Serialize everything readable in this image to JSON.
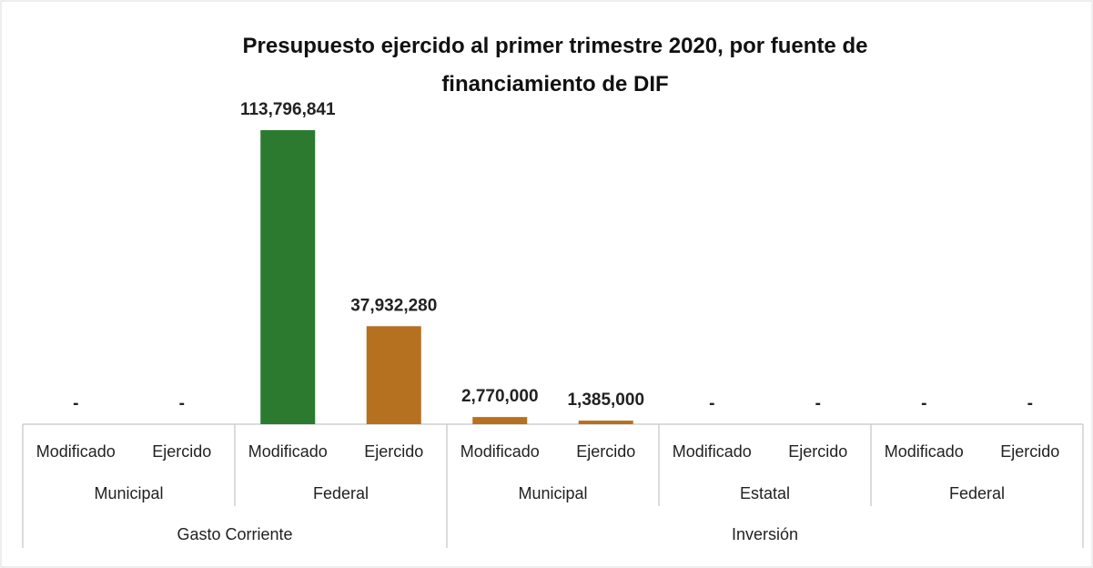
{
  "chart_data": {
    "type": "bar",
    "title": "Presupuesto ejercido al primer trimestre 2020, por fuente de financiamiento de DIF",
    "groups": [
      {
        "name": "Gasto Corriente",
        "subgroups": [
          {
            "name": "Municipal",
            "categories": [
              "Modificado",
              "Ejercido"
            ]
          },
          {
            "name": "Federal",
            "categories": [
              "Modificado",
              "Ejercido"
            ]
          }
        ]
      },
      {
        "name": "Inversión",
        "subgroups": [
          {
            "name": "Municipal",
            "categories": [
              "Modificado",
              "Ejercido"
            ]
          },
          {
            "name": "Estatal",
            "categories": [
              "Modificado",
              "Ejercido"
            ]
          },
          {
            "name": "Federal",
            "categories": [
              "Modificado",
              "Ejercido"
            ]
          }
        ]
      }
    ],
    "values": [
      0,
      0,
      113796841,
      37932280,
      2770000,
      1385000,
      0,
      0,
      0,
      0
    ],
    "value_labels": [
      "-",
      "-",
      "113,796,841",
      "37,932,280",
      "2,770,000",
      "1,385,000",
      "-",
      "-",
      "-",
      "-"
    ],
    "colors": [
      "#b5711f",
      "#b5711f",
      "#2b7a2f",
      "#b5711f",
      "#b5711f",
      "#b5711f",
      "#b5711f",
      "#b5711f",
      "#b5711f",
      "#b5711f"
    ]
  }
}
